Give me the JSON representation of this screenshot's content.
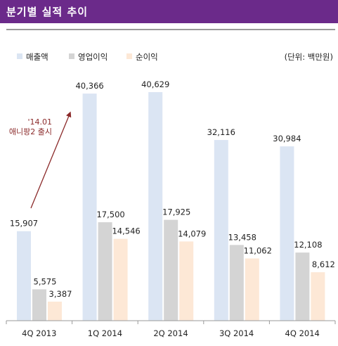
{
  "header": {
    "title": "분기별 실적 추이"
  },
  "chart_data": {
    "type": "bar",
    "title": "분기별 실적 추이",
    "unit_label": "(단위: 백만원)",
    "categories": [
      "4Q 2013",
      "1Q 2014",
      "2Q 2014",
      "3Q 2014",
      "4Q 2014"
    ],
    "series": [
      {
        "name": "매출액",
        "values": [
          15907,
          40366,
          40629,
          32116,
          30984
        ],
        "color": "#dbe5f3"
      },
      {
        "name": "영업이익",
        "values": [
          5575,
          17500,
          17925,
          13458,
          12108
        ],
        "color": "#d4d4d4"
      },
      {
        "name": "순이익",
        "values": [
          3387,
          14546,
          14079,
          11062,
          8612
        ],
        "color": "#fde8d6"
      }
    ],
    "data_labels": [
      [
        "15,907",
        "40,366",
        "40,629",
        "32,116",
        "30,984"
      ],
      [
        "5,575",
        "17,500",
        "17,925",
        "13,458",
        "12,108"
      ],
      [
        "3,387",
        "14,546",
        "14,079",
        "11,062",
        "8,612"
      ]
    ],
    "annotation": {
      "lines": [
        "'14.01",
        "애니팡2 출시"
      ],
      "color": "#8b2a2a"
    },
    "ylim": [
      0,
      45000
    ],
    "grid": false,
    "legend_position": "top-left"
  }
}
